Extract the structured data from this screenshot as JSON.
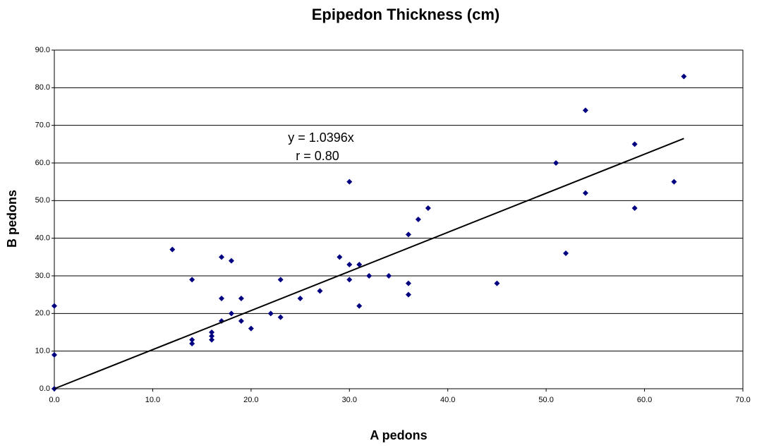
{
  "chart_data": {
    "type": "scatter",
    "title": "Epipedon Thickness (cm)",
    "x_label": "A pedons",
    "y_label": "B pedons",
    "annotations": [
      "y = 1.0396x",
      "r = 0.80"
    ],
    "color": "#000080",
    "x": [
      0,
      0,
      0,
      12,
      14,
      14,
      14,
      16,
      16,
      16,
      17,
      17,
      17,
      18,
      18,
      19,
      19,
      20,
      22,
      23,
      23,
      25,
      27,
      29,
      30,
      30,
      30,
      31,
      31,
      32,
      34,
      36,
      36,
      36,
      37,
      38,
      45,
      51,
      52,
      54,
      54,
      59,
      59,
      63,
      64
    ],
    "values": [
      0,
      9,
      22,
      37,
      29,
      13,
      12,
      15,
      14,
      13,
      35,
      24,
      18,
      34,
      20,
      24,
      18,
      16,
      20,
      29,
      19,
      24,
      26,
      35,
      55,
      33,
      29,
      33,
      22,
      30,
      30,
      41,
      28,
      25,
      45,
      48,
      28,
      60,
      36,
      74,
      52,
      65,
      48,
      55,
      83
    ],
    "trendline": {
      "x": [
        0,
        64
      ],
      "values": [
        0,
        66.5
      ]
    },
    "xlim": [
      0,
      70
    ],
    "ylim": [
      0,
      90
    ],
    "xticks": [
      {
        "value": 0,
        "label": "0.0"
      },
      {
        "value": 10,
        "label": "10.0"
      },
      {
        "value": 20,
        "label": "20.0"
      },
      {
        "value": 30,
        "label": "30.0"
      },
      {
        "value": 40,
        "label": "40.0"
      },
      {
        "value": 50,
        "label": "50.0"
      },
      {
        "value": 60,
        "label": "60.0"
      },
      {
        "value": 70,
        "label": "70.0"
      }
    ],
    "yticks": [
      {
        "value": 0,
        "label": "0.0"
      },
      {
        "value": 10,
        "label": "10.0"
      },
      {
        "value": 20,
        "label": "20.0"
      },
      {
        "value": 30,
        "label": "30.0"
      },
      {
        "value": 40,
        "label": "40.0"
      },
      {
        "value": 50,
        "label": "50.0"
      },
      {
        "value": 60,
        "label": "60.0"
      },
      {
        "value": 70,
        "label": "70.0"
      },
      {
        "value": 80,
        "label": "80.0"
      },
      {
        "value": 90,
        "label": "90.0"
      }
    ],
    "grid": true
  }
}
